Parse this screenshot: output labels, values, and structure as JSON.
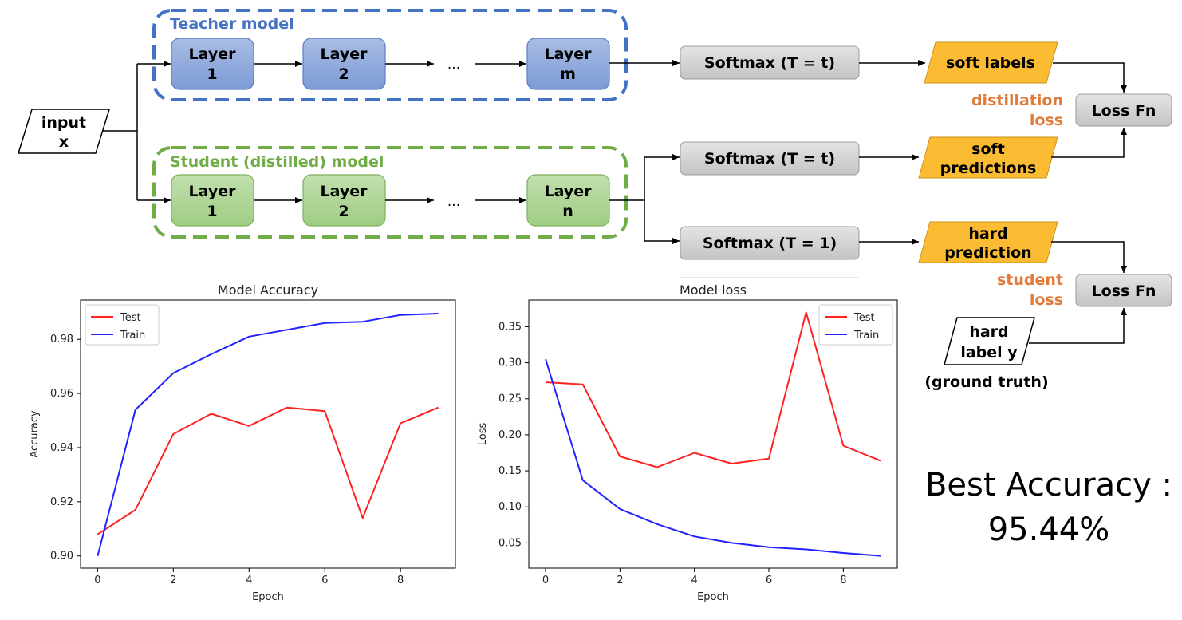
{
  "diagram": {
    "teacher_title": "Teacher model",
    "student_title": "Student (distilled) model",
    "input": [
      "input",
      "x"
    ],
    "teacher_layers": [
      [
        "Layer",
        "1"
      ],
      [
        "Layer",
        "2"
      ],
      [
        "Layer",
        "m"
      ]
    ],
    "student_layers": [
      [
        "Layer",
        "1"
      ],
      [
        "Layer",
        "2"
      ],
      [
        "Layer",
        "n"
      ]
    ],
    "ellipsis": "...",
    "softmax_teacher": "Softmax (T = t)",
    "softmax_student_soft": "Softmax (T = t)",
    "softmax_student_hard": "Softmax (T = 1)",
    "soft_labels": "soft labels",
    "soft_predictions": [
      "soft",
      "predictions"
    ],
    "hard_prediction": [
      "hard",
      "prediction"
    ],
    "hard_label": [
      "hard",
      "label y"
    ],
    "ground_truth": "(ground truth)",
    "distillation_loss": [
      "distillation",
      "loss"
    ],
    "student_loss": [
      "student",
      "loss"
    ],
    "loss_fn_1": "Loss Fn",
    "loss_fn_2": "Loss Fn",
    "colors": {
      "teacher": "#4472c4",
      "student": "#70ad47",
      "orange": "#e07b39",
      "yellow": "#fbbc33"
    }
  },
  "best_accuracy": {
    "line1": "Best Accuracy :",
    "line2": "95.44%"
  },
  "chart_data": [
    {
      "type": "line",
      "title": "Model Accuracy",
      "xlabel": "Epoch",
      "ylabel": "Accuracy",
      "x": [
        0,
        1,
        2,
        3,
        4,
        5,
        6,
        7,
        8,
        9
      ],
      "xticks": [
        0,
        2,
        4,
        6,
        8
      ],
      "yticks": [
        0.9,
        0.92,
        0.94,
        0.96,
        0.98
      ],
      "ytick_labels": [
        "0.90",
        "0.92",
        "0.94",
        "0.96",
        "0.98"
      ],
      "xlim": [
        -0.45,
        9.45
      ],
      "ylim": [
        0.8955,
        0.9945
      ],
      "legend": "top-left",
      "series": [
        {
          "name": "Test",
          "color": "#ff2222",
          "values": [
            0.908,
            0.917,
            0.945,
            0.9525,
            0.948,
            0.9548,
            0.9535,
            0.914,
            0.949,
            0.9548
          ]
        },
        {
          "name": "Train",
          "color": "#2222ff",
          "values": [
            0.9,
            0.954,
            0.9675,
            0.9745,
            0.981,
            0.9835,
            0.986,
            0.9865,
            0.989,
            0.9895
          ]
        }
      ]
    },
    {
      "type": "line",
      "title": "Model loss",
      "xlabel": "Epoch",
      "ylabel": "Loss",
      "x": [
        0,
        1,
        2,
        3,
        4,
        5,
        6,
        7,
        8,
        9
      ],
      "xticks": [
        0,
        2,
        4,
        6,
        8
      ],
      "yticks": [
        0.05,
        0.1,
        0.15,
        0.2,
        0.25,
        0.3,
        0.35
      ],
      "ytick_labels": [
        "0.05",
        "0.10",
        "0.15",
        "0.20",
        "0.25",
        "0.30",
        "0.35"
      ],
      "xlim": [
        -0.45,
        9.45
      ],
      "ylim": [
        0.015,
        0.387
      ],
      "legend": "top-right",
      "series": [
        {
          "name": "Test",
          "color": "#ff2222",
          "values": [
            0.273,
            0.27,
            0.17,
            0.155,
            0.175,
            0.16,
            0.167,
            0.37,
            0.185,
            0.164
          ]
        },
        {
          "name": "Train",
          "color": "#2222ff",
          "values": [
            0.305,
            0.137,
            0.097,
            0.076,
            0.059,
            0.05,
            0.044,
            0.041,
            0.036,
            0.032
          ]
        }
      ]
    }
  ]
}
